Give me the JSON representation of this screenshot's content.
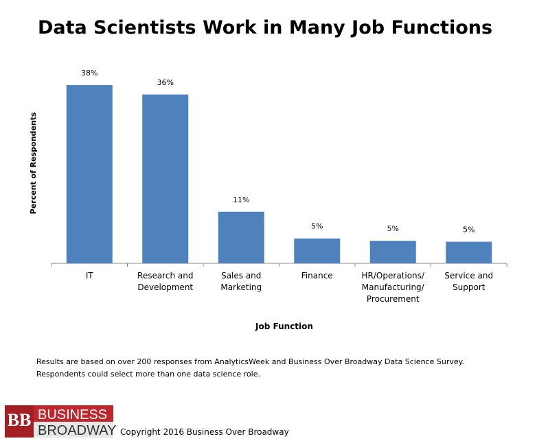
{
  "chart_data": {
    "type": "bar",
    "title": "Data Scientists Work in Many Job Functions",
    "x_label": "Job Function",
    "y_label": "Percent of Respondents",
    "categories": [
      "IT",
      "Research and\nDevelopment",
      "Sales and\nMarketing",
      "Finance",
      "HR/Operations/\nManufacturing/\nProcurement",
      "Service and\nSupport"
    ],
    "values": [
      38,
      36,
      11,
      5.3,
      4.8,
      4.6
    ],
    "value_labels": [
      "38%",
      "36%",
      "11%",
      "5%",
      "5%",
      "5%"
    ],
    "color": "#4f81bd"
  },
  "footnote": [
    "Results are based on over 200 responses from AnalyticsWeek and Business Over Broadway Data Science Survey.",
    "Respondents could select more than one data science role."
  ],
  "logo": {
    "mark": "BB",
    "line1": "BUSINESS",
    "line2": "BROADWAY"
  },
  "copyright": "Copyright 2016 Business Over Broadway"
}
